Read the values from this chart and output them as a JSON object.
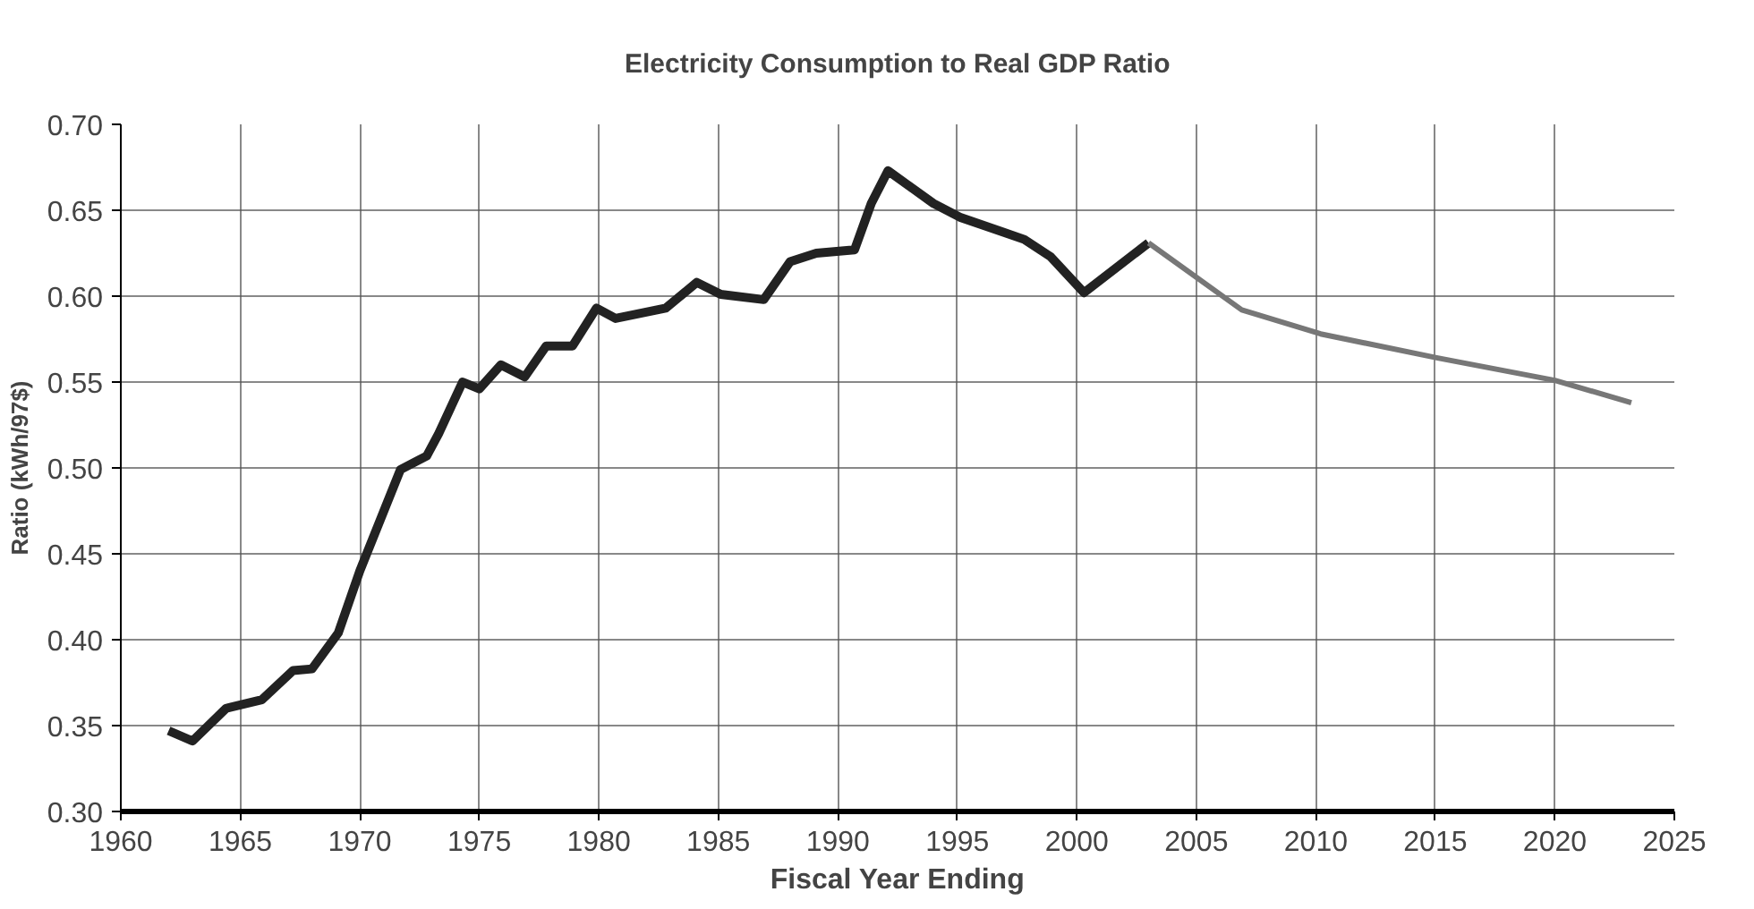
{
  "chart_data": {
    "type": "line",
    "title": "Electricity Consumption to Real GDP Ratio",
    "xlabel": "Fiscal Year Ending",
    "ylabel": "Ratio (kWh/97$)",
    "xlim": [
      1960,
      2025
    ],
    "xticks": [
      1960,
      1965,
      1970,
      1975,
      1980,
      1985,
      1990,
      1995,
      2000,
      2005,
      2010,
      2015,
      2020,
      2025
    ],
    "ylim": [
      0.3,
      0.7
    ],
    "yticks": [
      {
        "value": 0.3,
        "label": "0.30"
      },
      {
        "value": 0.35,
        "label": "0.35"
      },
      {
        "value": 0.4,
        "label": "0.40"
      },
      {
        "value": 0.45,
        "label": "0.45"
      },
      {
        "value": 0.5,
        "label": "0.50"
      },
      {
        "value": 0.55,
        "label": "0.55"
      },
      {
        "value": 0.6,
        "label": "0.60"
      },
      {
        "value": 0.65,
        "label": "0.65"
      },
      {
        "value": 0.7,
        "label": "0.70"
      }
    ],
    "grid": true,
    "series": [
      {
        "color": "#222222",
        "x": [
          1962,
          1963,
          1964.4,
          1965.9,
          1967.2,
          1968,
          1969.1,
          1970,
          1971.7,
          1972.8,
          1973.3,
          1974.3,
          1975,
          1975.9,
          1976.9,
          1977.8,
          1978.9,
          1979.9,
          1980.7,
          1982.8,
          1984.1,
          1985.1,
          1986.9,
          1988,
          1989.1,
          1990.7,
          1991.4,
          1992.1,
          1994,
          1995.1,
          1997.8,
          1998.9,
          2000.3,
          2003
        ],
        "values": [
          0.347,
          0.341,
          0.36,
          0.365,
          0.382,
          0.383,
          0.404,
          0.44,
          0.499,
          0.507,
          0.52,
          0.55,
          0.546,
          0.56,
          0.553,
          0.571,
          0.571,
          0.593,
          0.587,
          0.593,
          0.608,
          0.601,
          0.598,
          0.62,
          0.625,
          0.627,
          0.654,
          0.673,
          0.654,
          0.646,
          0.633,
          0.623,
          0.602,
          0.631
        ]
      },
      {
        "color": "#777777",
        "x": [
          2003,
          2006.9,
          2010.2,
          2015.1,
          2020,
          2023.2
        ],
        "values": [
          0.631,
          0.592,
          0.578,
          0.564,
          0.551,
          0.538
        ]
      }
    ]
  }
}
